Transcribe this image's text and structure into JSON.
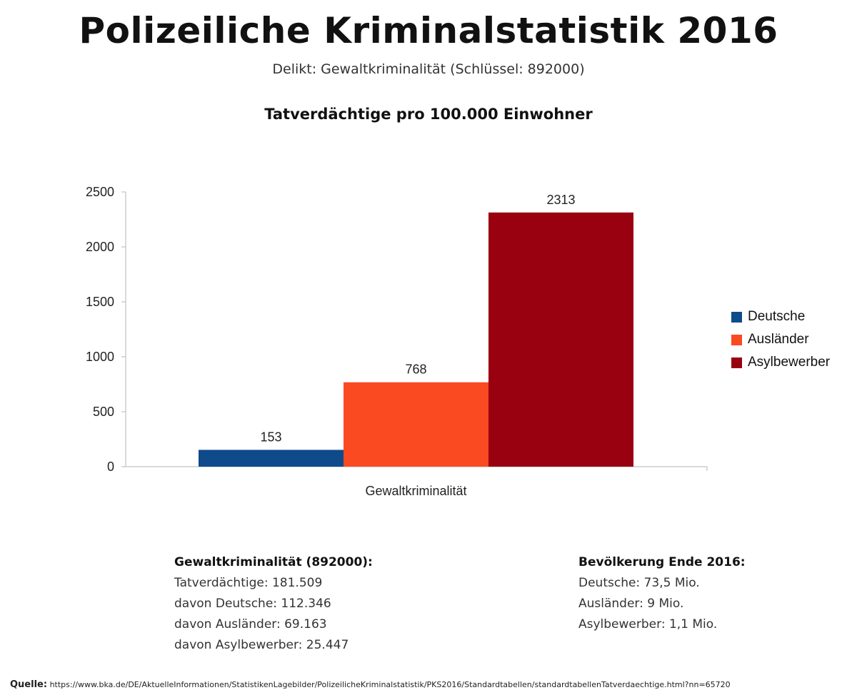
{
  "header": {
    "title": "Polizeiliche Kriminalstatistik 2016",
    "subtitle": "Delikt: Gewaltkriminalität (Schlüssel: 892000)",
    "chart_title": "Tatverdächtige pro 100.000 Einwohner"
  },
  "chart_data": {
    "type": "bar",
    "title": "Tatverdächtige pro 100.000 Einwohner",
    "categories": [
      "Gewaltkriminalität"
    ],
    "series": [
      {
        "name": "Deutsche",
        "values": [
          153
        ],
        "color": "#0f4a8a"
      },
      {
        "name": "Ausländer",
        "values": [
          768
        ],
        "color": "#fa4a22"
      },
      {
        "name": "Asylbewerber",
        "values": [
          2313
        ],
        "color": "#990010"
      }
    ],
    "ylim": [
      0,
      2500
    ],
    "yticks": [
      0,
      500,
      1000,
      1500,
      2000,
      2500
    ],
    "xlabel": "",
    "ylabel": "",
    "legend": "right",
    "grid": false
  },
  "stats_left": {
    "heading": "Gewaltkriminalität (892000):",
    "lines": [
      "Tatverdächtige: 181.509",
      "davon Deutsche: 112.346",
      "davon Ausländer: 69.163",
      "davon Asylbewerber: 25.447"
    ]
  },
  "stats_right": {
    "heading": "Bevölkerung Ende 2016:",
    "lines": [
      "Deutsche: 73,5 Mio.",
      "Ausländer: 9 Mio.",
      "Asylbewerber: 1,1 Mio."
    ]
  },
  "source": {
    "label": "Quelle:",
    "url": "https://www.bka.de/DE/AktuelleInformationen/StatistikenLagebilder/PolizeilicheKriminalstatistik/PKS2016/Standardtabellen/standardtabellenTatverdaechtige.html?nn=65720"
  }
}
